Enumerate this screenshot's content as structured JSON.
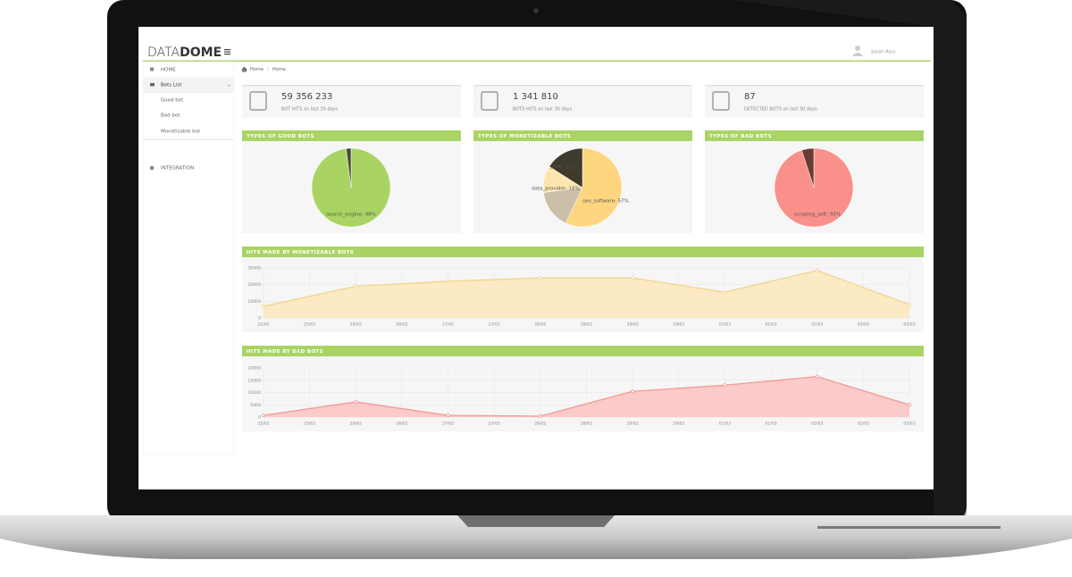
{
  "header": {
    "logo": [
      "DATA",
      "DOME"
    ],
    "user": "Sarah Ross"
  },
  "sidebar": {
    "items": [
      "HOME",
      "Bots List",
      "Good bot",
      "Bad bot",
      "Monetizable bot",
      "INTEGRATION"
    ]
  },
  "breadcrumb": [
    "Home",
    "Home"
  ],
  "stats": [
    {
      "value": "59 356 233",
      "caption": "BOT HITS on last 30 days"
    },
    {
      "value": "1 341 810",
      "caption": "BOTS HITS on last 30 days"
    },
    {
      "value": "87",
      "caption": "DETECTED BOTS on last 30 days"
    }
  ],
  "pies": [
    {
      "type": "pie",
      "title": "TYPES OF GOOD BOTS",
      "values": [
        98,
        2
      ],
      "value_labels": [
        "search_engine: 98%",
        null
      ],
      "colors": [
        "#a9d463",
        "#4a4a38"
      ]
    },
    {
      "type": "pie",
      "title": "TYPES OF MONETIZABLE BOTS",
      "values": [
        57,
        16,
        11,
        16
      ],
      "value_labels": [
        "seo_software: 57%",
        "data_provider: 16%",
        "smm: 11%",
        null
      ],
      "colors": [
        "#fdd67f",
        "#cbbfa9",
        "#fde6ad",
        "#3e3a2c"
      ]
    },
    {
      "type": "pie",
      "title": "TYPES OF BAD BOTS",
      "values": [
        95,
        5
      ],
      "value_labels": [
        "scraping_soft: 95%",
        null
      ],
      "colors": [
        "#fa908a",
        "#6b3b33"
      ]
    }
  ],
  "areas": [
    {
      "type": "area",
      "title": "HITS MADE BY MONETIZABLE BOTS",
      "x_labels": [
        "25/02",
        "25/02",
        "26/02",
        "26/02",
        "27/02",
        "27/02",
        "28/02",
        "28/02",
        "29/02",
        "29/02",
        "01/03",
        "01/03",
        "02/03",
        "02/03",
        "03/03"
      ],
      "values": [
        7000,
        19000,
        22000,
        24000,
        24000,
        15500,
        28500,
        8000
      ],
      "ylim": [
        0,
        30000
      ],
      "yticks": [
        0,
        10000,
        20000,
        30000
      ],
      "color": "#f3d48f",
      "fill": "#fbeac3",
      "grid": true
    },
    {
      "type": "area",
      "title": "HITS MADE BY BAD BOTS",
      "x_labels": [
        "25/02",
        "25/02",
        "26/02",
        "26/02",
        "27/02",
        "27/02",
        "28/02",
        "28/02",
        "29/02",
        "29/02",
        "01/03",
        "01/03",
        "02/03",
        "02/03",
        "03/03"
      ],
      "values": [
        700,
        6200,
        700,
        400,
        10500,
        13000,
        16500,
        5000
      ],
      "ylim": [
        0,
        20000
      ],
      "yticks": [
        0,
        5000,
        10000,
        15000,
        20000
      ],
      "color": "#f19b94",
      "fill": "#fbcaca",
      "grid": true
    }
  ]
}
